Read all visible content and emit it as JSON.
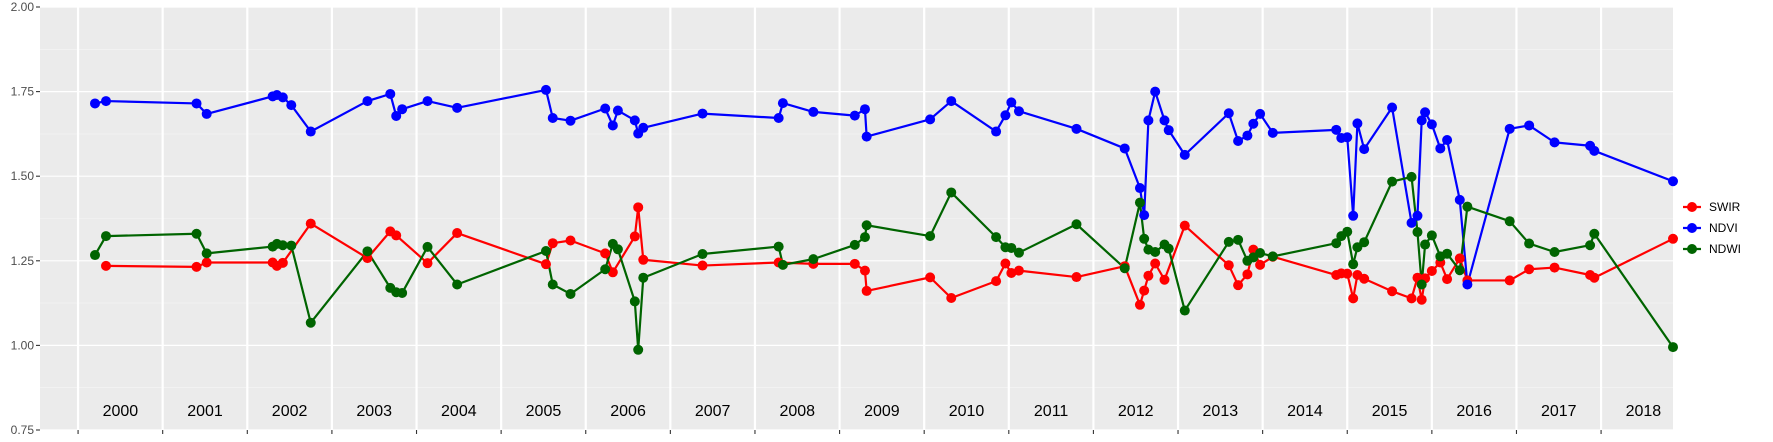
{
  "chart_data": {
    "type": "line",
    "title": "",
    "xlabel": "",
    "ylabel": "",
    "ylim": [
      0.75,
      2.0
    ],
    "xlim": [
      1999.55,
      2018.85
    ],
    "yticks": [
      0.75,
      1.0,
      1.25,
      1.5,
      1.75,
      2.0
    ],
    "ytick_labels": [
      "0.75",
      "1.00",
      "1.25",
      "1.50",
      "1.75",
      "2.00"
    ],
    "year_labels": [
      "2000",
      "2001",
      "2002",
      "2003",
      "2004",
      "2005",
      "2006",
      "2007",
      "2008",
      "2009",
      "2010",
      "2011",
      "2012",
      "2013",
      "2014",
      "2015",
      "2016",
      "2017",
      "2018"
    ],
    "grid": true,
    "legend_position": "right",
    "background": "#ebebeb",
    "series": [
      {
        "name": "SWIR",
        "color": "#ff0000",
        "points": [
          [
            2000.33,
            1.235
          ],
          [
            2001.4,
            1.232
          ],
          [
            2001.52,
            1.245
          ],
          [
            2002.3,
            1.245
          ],
          [
            2002.35,
            1.235
          ],
          [
            2002.42,
            1.244
          ],
          [
            2002.75,
            1.36
          ],
          [
            2003.42,
            1.258
          ],
          [
            2003.69,
            1.337
          ],
          [
            2003.76,
            1.325
          ],
          [
            2004.13,
            1.243
          ],
          [
            2004.48,
            1.332
          ],
          [
            2005.53,
            1.24
          ],
          [
            2005.61,
            1.302
          ],
          [
            2005.82,
            1.31
          ],
          [
            2006.23,
            1.272
          ],
          [
            2006.32,
            1.216
          ],
          [
            2006.58,
            1.322
          ],
          [
            2006.62,
            1.408
          ],
          [
            2006.68,
            1.253
          ],
          [
            2007.38,
            1.236
          ],
          [
            2008.28,
            1.245
          ],
          [
            2008.69,
            1.241
          ],
          [
            2009.18,
            1.241
          ],
          [
            2009.3,
            1.221
          ],
          [
            2009.32,
            1.161
          ],
          [
            2010.07,
            1.201
          ],
          [
            2010.32,
            1.14
          ],
          [
            2010.85,
            1.19
          ],
          [
            2010.96,
            1.242
          ],
          [
            2011.03,
            1.214
          ],
          [
            2011.12,
            1.221
          ],
          [
            2011.8,
            1.202
          ],
          [
            2012.37,
            1.234
          ],
          [
            2012.55,
            1.12
          ],
          [
            2012.6,
            1.162
          ],
          [
            2012.65,
            1.206
          ],
          [
            2012.73,
            1.242
          ],
          [
            2012.84,
            1.194
          ],
          [
            2013.08,
            1.354
          ],
          [
            2013.6,
            1.237
          ],
          [
            2013.71,
            1.178
          ],
          [
            2013.82,
            1.21
          ],
          [
            2013.89,
            1.283
          ],
          [
            2013.97,
            1.238
          ],
          [
            2014.12,
            1.262
          ],
          [
            2014.87,
            1.208
          ],
          [
            2014.93,
            1.213
          ],
          [
            2015.0,
            1.212
          ],
          [
            2015.07,
            1.139
          ],
          [
            2015.12,
            1.208
          ],
          [
            2015.2,
            1.197
          ],
          [
            2015.53,
            1.16
          ],
          [
            2015.76,
            1.139
          ],
          [
            2015.83,
            1.2
          ],
          [
            2015.88,
            1.135
          ],
          [
            2015.92,
            1.198
          ],
          [
            2016.0,
            1.22
          ],
          [
            2016.1,
            1.245
          ],
          [
            2016.18,
            1.196
          ],
          [
            2016.33,
            1.257
          ],
          [
            2016.42,
            1.192
          ],
          [
            2016.92,
            1.192
          ],
          [
            2017.15,
            1.225
          ],
          [
            2017.45,
            1.23
          ],
          [
            2017.87,
            1.208
          ],
          [
            2017.92,
            1.2
          ],
          [
            2018.85,
            1.315
          ]
        ]
      },
      {
        "name": "NDVI",
        "color": "#0000ff",
        "points": [
          [
            2000.2,
            1.715
          ],
          [
            2000.33,
            1.722
          ],
          [
            2001.4,
            1.715
          ],
          [
            2001.52,
            1.684
          ],
          [
            2002.3,
            1.736
          ],
          [
            2002.35,
            1.74
          ],
          [
            2002.42,
            1.733
          ],
          [
            2002.52,
            1.71
          ],
          [
            2002.75,
            1.632
          ],
          [
            2003.42,
            1.722
          ],
          [
            2003.69,
            1.743
          ],
          [
            2003.76,
            1.678
          ],
          [
            2003.83,
            1.698
          ],
          [
            2004.13,
            1.722
          ],
          [
            2004.48,
            1.702
          ],
          [
            2005.53,
            1.755
          ],
          [
            2005.61,
            1.672
          ],
          [
            2005.82,
            1.664
          ],
          [
            2006.23,
            1.7
          ],
          [
            2006.32,
            1.65
          ],
          [
            2006.38,
            1.694
          ],
          [
            2006.58,
            1.665
          ],
          [
            2006.62,
            1.626
          ],
          [
            2006.68,
            1.643
          ],
          [
            2007.38,
            1.685
          ],
          [
            2008.28,
            1.672
          ],
          [
            2008.33,
            1.716
          ],
          [
            2008.69,
            1.69
          ],
          [
            2009.18,
            1.679
          ],
          [
            2009.3,
            1.698
          ],
          [
            2009.32,
            1.617
          ],
          [
            2010.07,
            1.668
          ],
          [
            2010.32,
            1.722
          ],
          [
            2010.85,
            1.632
          ],
          [
            2010.96,
            1.68
          ],
          [
            2011.03,
            1.718
          ],
          [
            2011.12,
            1.692
          ],
          [
            2011.8,
            1.64
          ],
          [
            2012.37,
            1.582
          ],
          [
            2012.55,
            1.465
          ],
          [
            2012.6,
            1.385
          ],
          [
            2012.65,
            1.665
          ],
          [
            2012.73,
            1.75
          ],
          [
            2012.84,
            1.665
          ],
          [
            2012.89,
            1.636
          ],
          [
            2013.08,
            1.563
          ],
          [
            2013.6,
            1.686
          ],
          [
            2013.71,
            1.604
          ],
          [
            2013.82,
            1.62
          ],
          [
            2013.89,
            1.655
          ],
          [
            2013.97,
            1.684
          ],
          [
            2014.12,
            1.628
          ],
          [
            2014.87,
            1.637
          ],
          [
            2014.93,
            1.613
          ],
          [
            2015.0,
            1.615
          ],
          [
            2015.07,
            1.383
          ],
          [
            2015.12,
            1.656
          ],
          [
            2015.2,
            1.58
          ],
          [
            2015.53,
            1.703
          ],
          [
            2015.76,
            1.362
          ],
          [
            2015.83,
            1.383
          ],
          [
            2015.88,
            1.665
          ],
          [
            2015.92,
            1.689
          ],
          [
            2016.0,
            1.653
          ],
          [
            2016.1,
            1.582
          ],
          [
            2016.18,
            1.607
          ],
          [
            2016.33,
            1.43
          ],
          [
            2016.42,
            1.18
          ],
          [
            2016.92,
            1.64
          ],
          [
            2017.15,
            1.65
          ],
          [
            2017.45,
            1.6
          ],
          [
            2017.87,
            1.59
          ],
          [
            2017.92,
            1.575
          ],
          [
            2018.85,
            1.485
          ]
        ]
      },
      {
        "name": "NDWI",
        "color": "#006400",
        "points": [
          [
            2000.2,
            1.267
          ],
          [
            2000.33,
            1.323
          ],
          [
            2001.4,
            1.33
          ],
          [
            2001.52,
            1.272
          ],
          [
            2002.3,
            1.292
          ],
          [
            2002.35,
            1.3
          ],
          [
            2002.42,
            1.296
          ],
          [
            2002.52,
            1.295
          ],
          [
            2002.75,
            1.067
          ],
          [
            2003.42,
            1.278
          ],
          [
            2003.69,
            1.17
          ],
          [
            2003.76,
            1.157
          ],
          [
            2003.83,
            1.155
          ],
          [
            2004.13,
            1.291
          ],
          [
            2004.48,
            1.18
          ],
          [
            2005.53,
            1.279
          ],
          [
            2005.61,
            1.18
          ],
          [
            2005.82,
            1.152
          ],
          [
            2006.23,
            1.225
          ],
          [
            2006.32,
            1.3
          ],
          [
            2006.38,
            1.284
          ],
          [
            2006.58,
            1.13
          ],
          [
            2006.62,
            0.987
          ],
          [
            2006.68,
            1.2
          ],
          [
            2007.38,
            1.27
          ],
          [
            2008.28,
            1.292
          ],
          [
            2008.33,
            1.238
          ],
          [
            2008.69,
            1.255
          ],
          [
            2009.18,
            1.297
          ],
          [
            2009.3,
            1.32
          ],
          [
            2009.32,
            1.355
          ],
          [
            2010.07,
            1.323
          ],
          [
            2010.32,
            1.452
          ],
          [
            2010.85,
            1.32
          ],
          [
            2010.96,
            1.29
          ],
          [
            2011.03,
            1.288
          ],
          [
            2011.12,
            1.274
          ],
          [
            2011.8,
            1.358
          ],
          [
            2012.37,
            1.228
          ],
          [
            2012.55,
            1.422
          ],
          [
            2012.6,
            1.315
          ],
          [
            2012.65,
            1.283
          ],
          [
            2012.73,
            1.276
          ],
          [
            2012.84,
            1.298
          ],
          [
            2012.89,
            1.286
          ],
          [
            2013.08,
            1.103
          ],
          [
            2013.6,
            1.306
          ],
          [
            2013.71,
            1.312
          ],
          [
            2013.82,
            1.25
          ],
          [
            2013.89,
            1.26
          ],
          [
            2013.97,
            1.273
          ],
          [
            2014.12,
            1.263
          ],
          [
            2014.87,
            1.302
          ],
          [
            2014.93,
            1.323
          ],
          [
            2015.0,
            1.336
          ],
          [
            2015.07,
            1.24
          ],
          [
            2015.12,
            1.29
          ],
          [
            2015.2,
            1.305
          ],
          [
            2015.53,
            1.484
          ],
          [
            2015.76,
            1.498
          ],
          [
            2015.83,
            1.335
          ],
          [
            2015.88,
            1.18
          ],
          [
            2015.92,
            1.298
          ],
          [
            2016.0,
            1.325
          ],
          [
            2016.1,
            1.263
          ],
          [
            2016.18,
            1.271
          ],
          [
            2016.33,
            1.222
          ],
          [
            2016.42,
            1.41
          ],
          [
            2016.92,
            1.367
          ],
          [
            2017.15,
            1.301
          ],
          [
            2017.45,
            1.276
          ],
          [
            2017.87,
            1.296
          ],
          [
            2017.92,
            1.33
          ],
          [
            2018.85,
            0.995
          ]
        ]
      }
    ]
  }
}
